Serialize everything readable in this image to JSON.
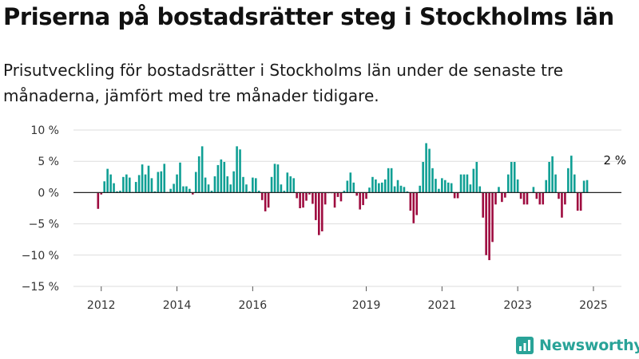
{
  "title": "Priserna på bostadsrätter steg i Stockholms län",
  "subtitle": "Prisutveckling för bostadsrätter i Stockholms län under de senaste tre månaderna, jämfört med tre månader tidigare.",
  "brand": {
    "name": "Newsworthy",
    "icon": "newsworthy-logo-icon",
    "color": "#29a398"
  },
  "colors": {
    "positive": "#0f9f94",
    "negative": "#9e0b3f",
    "zero_line": "#222222",
    "grid": "#dddddd"
  },
  "chart_data": {
    "type": "bar",
    "xlabel": "",
    "ylabel": "",
    "ylim": [
      -15,
      10
    ],
    "grid": true,
    "y_ticks": [
      {
        "value": 10,
        "label": "10 %"
      },
      {
        "value": 5,
        "label": "5 %"
      },
      {
        "value": 0,
        "label": "0 %"
      },
      {
        "value": -5,
        "label": "−5 %"
      },
      {
        "value": -10,
        "label": "−10 %"
      },
      {
        "value": -15,
        "label": "−15 %"
      }
    ],
    "x_ticks": [
      {
        "x": "2012-01",
        "label": "2012"
      },
      {
        "x": "2014-01",
        "label": "2014"
      },
      {
        "x": "2016-01",
        "label": "2016"
      },
      {
        "x": "2019-01",
        "label": "2019"
      },
      {
        "x": "2021-01",
        "label": "2021"
      },
      {
        "x": "2023-01",
        "label": "2023"
      },
      {
        "x": "2025-01",
        "label": "2025"
      }
    ],
    "annotation": {
      "x": "2025-04",
      "label": "2 %"
    },
    "series": [
      {
        "points": [
          [
            "2011-12",
            -2.6
          ],
          [
            "2012-01",
            -0.3
          ],
          [
            "2012-02",
            1.8
          ],
          [
            "2012-03",
            3.8
          ],
          [
            "2012-04",
            2.9
          ],
          [
            "2012-05",
            1.5
          ],
          [
            "2012-06",
            0.2
          ],
          [
            "2012-07",
            0.3
          ],
          [
            "2012-08",
            2.5
          ],
          [
            "2012-09",
            2.9
          ],
          [
            "2012-10",
            2.4
          ],
          [
            "2012-11",
            0.1
          ],
          [
            "2012-12",
            1.7
          ],
          [
            "2013-01",
            2.8
          ],
          [
            "2013-02",
            4.5
          ],
          [
            "2013-03",
            2.9
          ],
          [
            "2013-04",
            4.3
          ],
          [
            "2013-05",
            2.3
          ],
          [
            "2013-06",
            0.2
          ],
          [
            "2013-07",
            3.3
          ],
          [
            "2013-08",
            3.4
          ],
          [
            "2013-09",
            4.6
          ],
          [
            "2013-10",
            0.1
          ],
          [
            "2013-11",
            0.6
          ],
          [
            "2013-12",
            1.4
          ],
          [
            "2014-01",
            2.9
          ],
          [
            "2014-02",
            4.8
          ],
          [
            "2014-03",
            1.0
          ],
          [
            "2014-04",
            1.0
          ],
          [
            "2014-05",
            0.6
          ],
          [
            "2014-06",
            -0.3
          ],
          [
            "2014-07",
            3.3
          ],
          [
            "2014-08",
            5.8
          ],
          [
            "2014-09",
            7.4
          ],
          [
            "2014-10",
            2.4
          ],
          [
            "2014-11",
            1.3
          ],
          [
            "2014-12",
            0.3
          ],
          [
            "2015-01",
            2.6
          ],
          [
            "2015-02",
            4.4
          ],
          [
            "2015-03",
            5.3
          ],
          [
            "2015-04",
            4.9
          ],
          [
            "2015-05",
            2.6
          ],
          [
            "2015-06",
            1.3
          ],
          [
            "2015-07",
            3.4
          ],
          [
            "2015-08",
            7.4
          ],
          [
            "2015-09",
            6.9
          ],
          [
            "2015-10",
            2.5
          ],
          [
            "2015-11",
            1.3
          ],
          [
            "2015-12",
            0.2
          ],
          [
            "2016-01",
            2.4
          ],
          [
            "2016-02",
            2.3
          ],
          [
            "2016-03",
            0.3
          ],
          [
            "2016-04",
            -1.2
          ],
          [
            "2016-05",
            -3.0
          ],
          [
            "2016-06",
            -2.4
          ],
          [
            "2016-07",
            2.5
          ],
          [
            "2016-08",
            4.6
          ],
          [
            "2016-09",
            4.5
          ],
          [
            "2016-10",
            1.3
          ],
          [
            "2016-11",
            0.3
          ],
          [
            "2016-12",
            3.2
          ],
          [
            "2017-01",
            2.6
          ],
          [
            "2017-02",
            2.3
          ],
          [
            "2017-03",
            -0.9
          ],
          [
            "2017-04",
            -2.5
          ],
          [
            "2017-05",
            -2.4
          ],
          [
            "2017-06",
            -1.3
          ],
          [
            "2017-07",
            -0.3
          ],
          [
            "2017-08",
            -1.8
          ],
          [
            "2017-09",
            -4.4
          ],
          [
            "2017-10",
            -6.8
          ],
          [
            "2017-11",
            -6.2
          ],
          [
            "2017-12",
            -1.9
          ],
          [
            "2018-01",
            -0.1
          ],
          [
            "2018-02",
            -0.1
          ],
          [
            "2018-03",
            -2.4
          ],
          [
            "2018-04",
            -0.7
          ],
          [
            "2018-05",
            -1.4
          ],
          [
            "2018-06",
            0.3
          ],
          [
            "2018-07",
            1.9
          ],
          [
            "2018-08",
            3.2
          ],
          [
            "2018-09",
            1.6
          ],
          [
            "2018-10",
            -0.5
          ],
          [
            "2018-11",
            -2.7
          ],
          [
            "2018-12",
            -2.0
          ],
          [
            "2019-01",
            -1.0
          ],
          [
            "2019-02",
            0.8
          ],
          [
            "2019-03",
            2.5
          ],
          [
            "2019-04",
            2.1
          ],
          [
            "2019-05",
            1.5
          ],
          [
            "2019-06",
            1.6
          ],
          [
            "2019-07",
            2.1
          ],
          [
            "2019-08",
            3.9
          ],
          [
            "2019-09",
            3.9
          ],
          [
            "2019-10",
            1.0
          ],
          [
            "2019-11",
            2.0
          ],
          [
            "2019-12",
            1.1
          ],
          [
            "2020-01",
            0.9
          ],
          [
            "2020-02",
            0.2
          ],
          [
            "2020-03",
            -2.9
          ],
          [
            "2020-04",
            -4.9
          ],
          [
            "2020-05",
            -3.6
          ],
          [
            "2020-06",
            1.1
          ],
          [
            "2020-07",
            4.9
          ],
          [
            "2020-08",
            7.9
          ],
          [
            "2020-09",
            7.0
          ],
          [
            "2020-10",
            3.9
          ],
          [
            "2020-11",
            2.2
          ],
          [
            "2020-12",
            0.6
          ],
          [
            "2021-01",
            2.3
          ],
          [
            "2021-02",
            2.0
          ],
          [
            "2021-03",
            1.6
          ],
          [
            "2021-04",
            1.5
          ],
          [
            "2021-05",
            -0.9
          ],
          [
            "2021-06",
            -0.9
          ],
          [
            "2021-07",
            2.9
          ],
          [
            "2021-08",
            2.9
          ],
          [
            "2021-09",
            2.9
          ],
          [
            "2021-10",
            1.3
          ],
          [
            "2021-11",
            3.8
          ],
          [
            "2021-12",
            4.9
          ],
          [
            "2022-01",
            1.0
          ],
          [
            "2022-02",
            -4.0
          ],
          [
            "2022-03",
            -10.0
          ],
          [
            "2022-04",
            -10.8
          ],
          [
            "2022-05",
            -7.9
          ],
          [
            "2022-06",
            -1.9
          ],
          [
            "2022-07",
            0.9
          ],
          [
            "2022-08",
            -1.5
          ],
          [
            "2022-09",
            -0.8
          ],
          [
            "2022-10",
            2.9
          ],
          [
            "2022-11",
            4.9
          ],
          [
            "2022-12",
            4.9
          ],
          [
            "2023-01",
            2.1
          ],
          [
            "2023-02",
            -1.0
          ],
          [
            "2023-03",
            -1.9
          ],
          [
            "2023-04",
            -1.9
          ],
          [
            "2023-05",
            0.0
          ],
          [
            "2023-06",
            0.9
          ],
          [
            "2023-07",
            -1.0
          ],
          [
            "2023-08",
            -1.9
          ],
          [
            "2023-09",
            -1.9
          ],
          [
            "2023-10",
            2.0
          ],
          [
            "2023-11",
            4.9
          ],
          [
            "2023-12",
            5.8
          ],
          [
            "2024-01",
            2.9
          ],
          [
            "2024-02",
            -1.0
          ],
          [
            "2024-03",
            -4.0
          ],
          [
            "2024-04",
            -1.9
          ],
          [
            "2024-05",
            3.9
          ],
          [
            "2024-06",
            5.9
          ],
          [
            "2024-07",
            2.9
          ],
          [
            "2024-08",
            -2.9
          ],
          [
            "2024-09",
            -2.9
          ],
          [
            "2024-10",
            1.9
          ],
          [
            "2024-11",
            2.0
          ]
        ]
      }
    ]
  }
}
